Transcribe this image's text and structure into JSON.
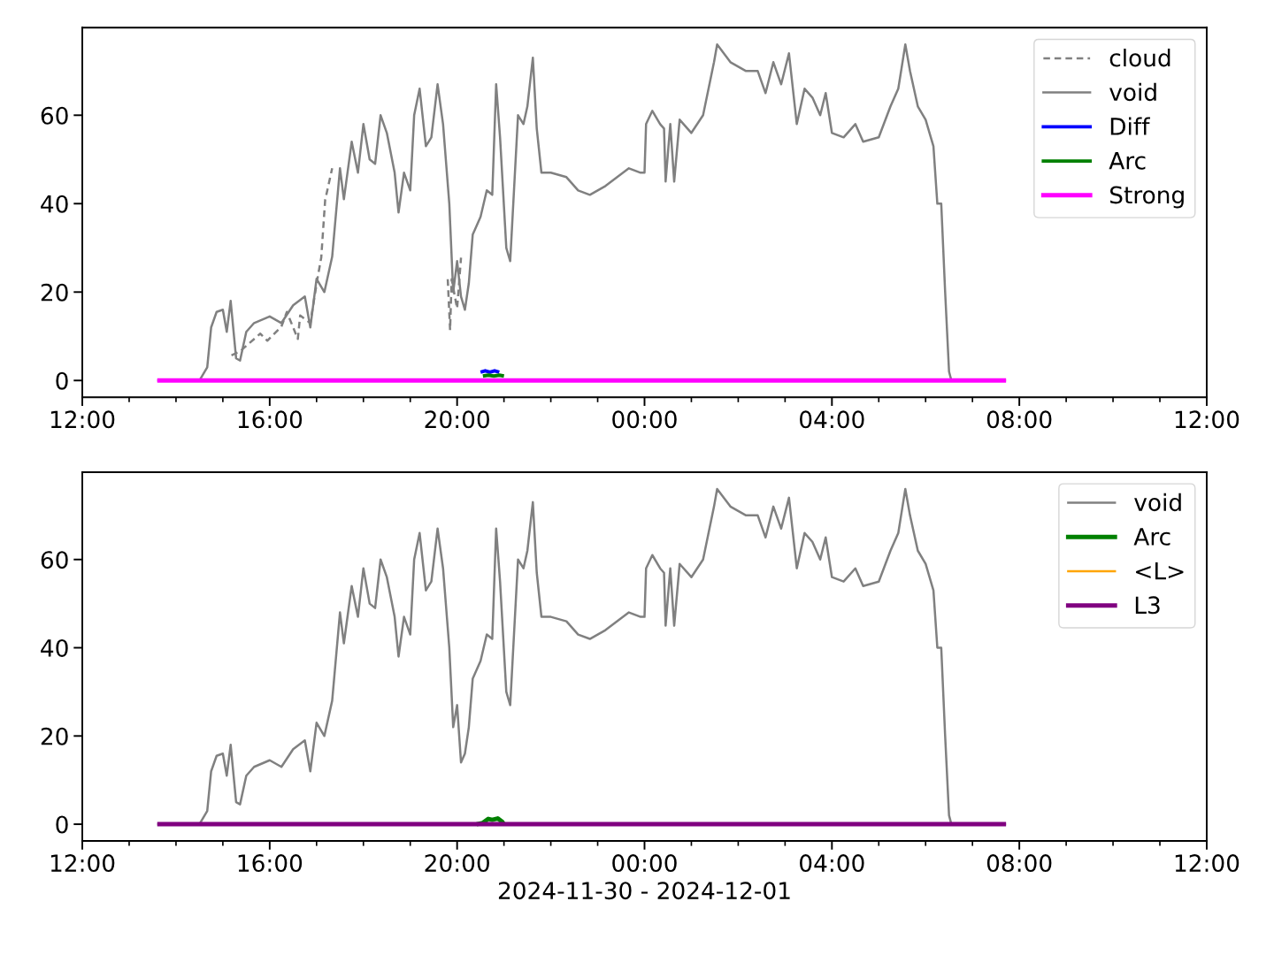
{
  "chart_data": [
    {
      "type": "line",
      "legend": "top right",
      "grid": false,
      "marker": "none",
      "xlim": [
        "2024-11-30T12:00",
        "2024-12-01T12:00"
      ],
      "xticks": [
        {
          "value": "2024-11-30T12:00",
          "label": "12:00"
        },
        {
          "value": "2024-11-30T13:00",
          "label": null
        },
        {
          "value": "2024-11-30T14:00",
          "label": null
        },
        {
          "value": "2024-11-30T15:00",
          "label": null
        },
        {
          "value": "2024-11-30T16:00",
          "label": "16:00"
        },
        {
          "value": "2024-11-30T17:00",
          "label": null
        },
        {
          "value": "2024-11-30T18:00",
          "label": null
        },
        {
          "value": "2024-11-30T19:00",
          "label": null
        },
        {
          "value": "2024-11-30T20:00",
          "label": "20:00"
        },
        {
          "value": "2024-11-30T21:00",
          "label": null
        },
        {
          "value": "2024-11-30T22:00",
          "label": null
        },
        {
          "value": "2024-11-30T23:00",
          "label": null
        },
        {
          "value": "2024-12-01T00:00",
          "label": "00:00"
        },
        {
          "value": "2024-12-01T01:00",
          "label": null
        },
        {
          "value": "2024-12-01T02:00",
          "label": null
        },
        {
          "value": "2024-12-01T03:00",
          "label": null
        },
        {
          "value": "2024-12-01T04:00",
          "label": "04:00"
        },
        {
          "value": "2024-12-01T05:00",
          "label": null
        },
        {
          "value": "2024-12-01T06:00",
          "label": null
        },
        {
          "value": "2024-12-01T07:00",
          "label": null
        },
        {
          "value": "2024-12-01T08:00",
          "label": "08:00"
        },
        {
          "value": "2024-12-01T09:00",
          "label": null
        },
        {
          "value": "2024-12-01T10:00",
          "label": null
        },
        {
          "value": "2024-12-01T11:00",
          "label": null
        },
        {
          "value": "2024-12-01T12:00",
          "label": "12:00"
        }
      ],
      "ylim": [
        -3.8,
        79.8
      ],
      "yticks": [
        0,
        20,
        40,
        60
      ],
      "series": [
        {
          "name": "cloud",
          "color": "#808080",
          "line_style": "dashed",
          "x": [
            "2024-11-30T15:11",
            "2024-11-30T15:22",
            "2024-11-30T15:48",
            "2024-11-30T15:57",
            "2024-11-30T16:15",
            "2024-11-30T16:22",
            "2024-11-30T16:36",
            "2024-11-30T16:39",
            "2024-11-30T16:52",
            "2024-11-30T17:01",
            "2024-11-30T17:06",
            "2024-11-30T17:11",
            "2024-11-30T17:20",
            null,
            "2024-11-30T19:48",
            "2024-11-30T19:51",
            "2024-11-30T19:53",
            "2024-11-30T20:00",
            "2024-11-30T20:05"
          ],
          "values": [
            5.7,
            6.6,
            10.6,
            9,
            12.2,
            15.5,
            9.4,
            14.7,
            13,
            22.9,
            27.8,
            40.8,
            48,
            null,
            22.9,
            11.4,
            22.9,
            16.3,
            27.8
          ]
        },
        {
          "name": "void",
          "color": "#808080",
          "line_style": "solid",
          "x": [
            "2024-11-30T13:36",
            "2024-11-30T14:30",
            "2024-11-30T14:40",
            "2024-11-30T14:45",
            "2024-11-30T14:52",
            "2024-11-30T15:00",
            "2024-11-30T15:05",
            "2024-11-30T15:10",
            "2024-11-30T15:17",
            "2024-11-30T15:22",
            "2024-11-30T15:30",
            "2024-11-30T15:40",
            "2024-11-30T16:00",
            "2024-11-30T16:15",
            "2024-11-30T16:30",
            "2024-11-30T16:45",
            "2024-11-30T16:52",
            "2024-11-30T17:00",
            "2024-11-30T17:10",
            "2024-11-30T17:20",
            "2024-11-30T17:30",
            "2024-11-30T17:35",
            "2024-11-30T17:45",
            "2024-11-30T17:53",
            "2024-11-30T18:00",
            "2024-11-30T18:08",
            "2024-11-30T18:15",
            "2024-11-30T18:22",
            "2024-11-30T18:30",
            "2024-11-30T18:40",
            "2024-11-30T18:45",
            "2024-11-30T18:52",
            "2024-11-30T19:00",
            "2024-11-30T19:05",
            "2024-11-30T19:12",
            "2024-11-30T19:20",
            "2024-11-30T19:27",
            "2024-11-30T19:35",
            "2024-11-30T19:42",
            "2024-11-30T19:50",
            "2024-11-30T19:55",
            "2024-11-30T20:00",
            "2024-11-30T20:05",
            "2024-11-30T20:10",
            "2024-11-30T20:15",
            "2024-11-30T20:20",
            "2024-11-30T20:30",
            "2024-11-30T20:38",
            "2024-11-30T20:45",
            "2024-11-30T20:50",
            "2024-11-30T20:55",
            "2024-11-30T21:03",
            "2024-11-30T21:08",
            "2024-11-30T21:18",
            "2024-11-30T21:25",
            "2024-11-30T21:30",
            "2024-11-30T21:37",
            "2024-11-30T21:42",
            "2024-11-30T21:48",
            "2024-11-30T22:00",
            "2024-11-30T22:20",
            "2024-11-30T22:35",
            "2024-11-30T22:50",
            "2024-11-30T23:10",
            "2024-11-30T23:25",
            "2024-11-30T23:40",
            "2024-11-30T23:55",
            "2024-12-01T00:00",
            "2024-12-01T00:02",
            "2024-12-01T00:10",
            "2024-12-01T00:20",
            "2024-12-01T00:25",
            "2024-12-01T00:27",
            "2024-12-01T00:33",
            "2024-12-01T00:38",
            "2024-12-01T00:45",
            "2024-12-01T01:00",
            "2024-12-01T01:15",
            "2024-12-01T01:29",
            "2024-12-01T01:33",
            "2024-12-01T01:50",
            "2024-12-01T02:10",
            "2024-12-01T02:25",
            "2024-12-01T02:35",
            "2024-12-01T02:45",
            "2024-12-01T02:55",
            "2024-12-01T03:05",
            "2024-12-01T03:15",
            "2024-12-01T03:25",
            "2024-12-01T03:35",
            "2024-12-01T03:45",
            "2024-12-01T03:52",
            "2024-12-01T04:00",
            "2024-12-01T04:15",
            "2024-12-01T04:30",
            "2024-12-01T04:40",
            "2024-12-01T05:00",
            "2024-12-01T05:15",
            "2024-12-01T05:25",
            "2024-12-01T05:34",
            "2024-12-01T05:40",
            "2024-12-01T05:50",
            "2024-12-01T06:00",
            "2024-12-01T06:10",
            "2024-12-01T06:15",
            "2024-12-01T06:20",
            "2024-12-01T06:25",
            "2024-12-01T06:30",
            "2024-12-01T06:33",
            "2024-12-01T07:43"
          ],
          "values": [
            0,
            0,
            3,
            12,
            15.5,
            16,
            11,
            18,
            5,
            4.5,
            11,
            13,
            14.5,
            13,
            17,
            19,
            12,
            23,
            20,
            28,
            48,
            41,
            54,
            47,
            58,
            50,
            49,
            60,
            56,
            47,
            38,
            47,
            43,
            60,
            66,
            53,
            55,
            67,
            58,
            40,
            20,
            27,
            19,
            16,
            22,
            33,
            37,
            43,
            42,
            67,
            55,
            30,
            27,
            60,
            58,
            62,
            73,
            57,
            47,
            47,
            46,
            43,
            42,
            44,
            46,
            48,
            47,
            47,
            58,
            61,
            58,
            57,
            45,
            58,
            45,
            59,
            56,
            60,
            72,
            76,
            72,
            70,
            70,
            65,
            72,
            67,
            74,
            58,
            66,
            64,
            60,
            65,
            56,
            55,
            58,
            54,
            55,
            62,
            66,
            76,
            70,
            62,
            59,
            53,
            40,
            40,
            20,
            2,
            0,
            0
          ]
        },
        {
          "name": "Diff",
          "color": "#0000ff",
          "line_style": "solid",
          "x": [
            "2024-11-30T20:30",
            "2024-11-30T20:36",
            "2024-11-30T20:42",
            "2024-11-30T20:48",
            "2024-11-30T20:54"
          ],
          "values": [
            1.9,
            2.2,
            1.9,
            2.2,
            1.9
          ]
        },
        {
          "name": "Arc",
          "color": "#008000",
          "line_style": "solid",
          "x": [
            "2024-11-30T20:33",
            "2024-11-30T20:40",
            "2024-11-30T20:47",
            "2024-11-30T20:54",
            "2024-11-30T21:00"
          ],
          "values": [
            1.0,
            1.2,
            1.0,
            1.2,
            1.0
          ]
        },
        {
          "name": "Strong",
          "color": "#ff00ff",
          "line_style": "solid",
          "x": [
            "2024-11-30T13:36",
            "2024-12-01T07:43"
          ],
          "values": [
            0,
            0
          ]
        }
      ]
    },
    {
      "type": "line",
      "legend": "top right",
      "grid": false,
      "marker": "none",
      "xlabel": "2024-11-30 - 2024-12-01",
      "xlim": [
        "2024-11-30T12:00",
        "2024-12-01T12:00"
      ],
      "xticks": [
        {
          "value": "2024-11-30T12:00",
          "label": "12:00"
        },
        {
          "value": "2024-11-30T13:00",
          "label": null
        },
        {
          "value": "2024-11-30T14:00",
          "label": null
        },
        {
          "value": "2024-11-30T15:00",
          "label": null
        },
        {
          "value": "2024-11-30T16:00",
          "label": "16:00"
        },
        {
          "value": "2024-11-30T17:00",
          "label": null
        },
        {
          "value": "2024-11-30T18:00",
          "label": null
        },
        {
          "value": "2024-11-30T19:00",
          "label": null
        },
        {
          "value": "2024-11-30T20:00",
          "label": "20:00"
        },
        {
          "value": "2024-11-30T21:00",
          "label": null
        },
        {
          "value": "2024-11-30T22:00",
          "label": null
        },
        {
          "value": "2024-11-30T23:00",
          "label": null
        },
        {
          "value": "2024-12-01T00:00",
          "label": "00:00"
        },
        {
          "value": "2024-12-01T01:00",
          "label": null
        },
        {
          "value": "2024-12-01T02:00",
          "label": null
        },
        {
          "value": "2024-12-01T03:00",
          "label": null
        },
        {
          "value": "2024-12-01T04:00",
          "label": "04:00"
        },
        {
          "value": "2024-12-01T05:00",
          "label": null
        },
        {
          "value": "2024-12-01T06:00",
          "label": null
        },
        {
          "value": "2024-12-01T07:00",
          "label": null
        },
        {
          "value": "2024-12-01T08:00",
          "label": "08:00"
        },
        {
          "value": "2024-12-01T09:00",
          "label": null
        },
        {
          "value": "2024-12-01T10:00",
          "label": null
        },
        {
          "value": "2024-12-01T11:00",
          "label": null
        },
        {
          "value": "2024-12-01T12:00",
          "label": "12:00"
        }
      ],
      "ylim": [
        -3.8,
        79.8
      ],
      "yticks": [
        0,
        20,
        40,
        60
      ],
      "series": [
        {
          "name": "void",
          "color": "#808080",
          "line_style": "solid",
          "x": [
            "2024-11-30T13:36",
            "2024-11-30T14:30",
            "2024-11-30T14:40",
            "2024-11-30T14:45",
            "2024-11-30T14:52",
            "2024-11-30T15:00",
            "2024-11-30T15:05",
            "2024-11-30T15:10",
            "2024-11-30T15:17",
            "2024-11-30T15:22",
            "2024-11-30T15:30",
            "2024-11-30T15:40",
            "2024-11-30T16:00",
            "2024-11-30T16:15",
            "2024-11-30T16:30",
            "2024-11-30T16:45",
            "2024-11-30T16:52",
            "2024-11-30T17:00",
            "2024-11-30T17:10",
            "2024-11-30T17:20",
            "2024-11-30T17:30",
            "2024-11-30T17:35",
            "2024-11-30T17:45",
            "2024-11-30T17:53",
            "2024-11-30T18:00",
            "2024-11-30T18:08",
            "2024-11-30T18:15",
            "2024-11-30T18:22",
            "2024-11-30T18:30",
            "2024-11-30T18:40",
            "2024-11-30T18:45",
            "2024-11-30T18:52",
            "2024-11-30T19:00",
            "2024-11-30T19:05",
            "2024-11-30T19:12",
            "2024-11-30T19:20",
            "2024-11-30T19:27",
            "2024-11-30T19:35",
            "2024-11-30T19:42",
            "2024-11-30T19:50",
            "2024-11-30T19:55",
            "2024-11-30T20:00",
            "2024-11-30T20:05",
            "2024-11-30T20:10",
            "2024-11-30T20:15",
            "2024-11-30T20:20",
            "2024-11-30T20:30",
            "2024-11-30T20:38",
            "2024-11-30T20:45",
            "2024-11-30T20:50",
            "2024-11-30T20:55",
            "2024-11-30T21:03",
            "2024-11-30T21:08",
            "2024-11-30T21:18",
            "2024-11-30T21:25",
            "2024-11-30T21:30",
            "2024-11-30T21:37",
            "2024-11-30T21:42",
            "2024-11-30T21:48",
            "2024-11-30T22:00",
            "2024-11-30T22:20",
            "2024-11-30T22:35",
            "2024-11-30T22:50",
            "2024-11-30T23:10",
            "2024-11-30T23:25",
            "2024-11-30T23:40",
            "2024-11-30T23:55",
            "2024-12-01T00:00",
            "2024-12-01T00:02",
            "2024-12-01T00:10",
            "2024-12-01T00:20",
            "2024-12-01T00:25",
            "2024-12-01T00:27",
            "2024-12-01T00:33",
            "2024-12-01T00:38",
            "2024-12-01T00:45",
            "2024-12-01T01:00",
            "2024-12-01T01:15",
            "2024-12-01T01:29",
            "2024-12-01T01:33",
            "2024-12-01T01:50",
            "2024-12-01T02:10",
            "2024-12-01T02:25",
            "2024-12-01T02:35",
            "2024-12-01T02:45",
            "2024-12-01T02:55",
            "2024-12-01T03:05",
            "2024-12-01T03:15",
            "2024-12-01T03:25",
            "2024-12-01T03:35",
            "2024-12-01T03:45",
            "2024-12-01T03:52",
            "2024-12-01T04:00",
            "2024-12-01T04:15",
            "2024-12-01T04:30",
            "2024-12-01T04:40",
            "2024-12-01T05:00",
            "2024-12-01T05:15",
            "2024-12-01T05:25",
            "2024-12-01T05:34",
            "2024-12-01T05:40",
            "2024-12-01T05:50",
            "2024-12-01T06:00",
            "2024-12-01T06:10",
            "2024-12-01T06:15",
            "2024-12-01T06:20",
            "2024-12-01T06:25",
            "2024-12-01T06:30",
            "2024-12-01T06:33",
            "2024-12-01T07:43"
          ],
          "values": [
            0,
            0,
            3,
            12,
            15.5,
            16,
            11,
            18,
            5,
            4.5,
            11,
            13,
            14.5,
            13,
            17,
            19,
            12,
            23,
            20,
            28,
            48,
            41,
            54,
            47,
            58,
            50,
            49,
            60,
            56,
            47,
            38,
            47,
            43,
            60,
            66,
            53,
            55,
            67,
            58,
            40,
            22,
            27,
            14,
            16,
            22,
            33,
            37,
            43,
            42,
            67,
            55,
            30,
            27,
            60,
            58,
            62,
            73,
            57,
            47,
            47,
            46,
            43,
            42,
            44,
            46,
            48,
            47,
            47,
            58,
            61,
            58,
            57,
            45,
            58,
            45,
            59,
            56,
            60,
            72,
            76,
            72,
            70,
            70,
            65,
            72,
            67,
            74,
            58,
            66,
            64,
            60,
            65,
            56,
            55,
            58,
            54,
            55,
            62,
            66,
            76,
            70,
            62,
            59,
            53,
            40,
            40,
            20,
            2,
            0,
            0
          ]
        },
        {
          "name": "Arc",
          "color": "#008000",
          "line_style": "solid",
          "x": [
            "2024-11-30T20:25",
            "2024-11-30T20:33",
            "2024-11-30T20:40",
            "2024-11-30T20:45",
            "2024-11-30T20:52",
            "2024-11-30T20:58",
            "2024-11-30T21:00"
          ],
          "values": [
            0,
            0.3,
            1.2,
            1.0,
            1.3,
            0.5,
            0
          ]
        },
        {
          "name": "<L>",
          "color": "#ffa500",
          "line_style": "solid"
        },
        {
          "name": "L3",
          "color": "#800080",
          "line_style": "solid",
          "x": [
            "2024-11-30T13:36",
            "2024-12-01T07:43"
          ],
          "values": [
            0,
            0
          ]
        }
      ]
    }
  ]
}
